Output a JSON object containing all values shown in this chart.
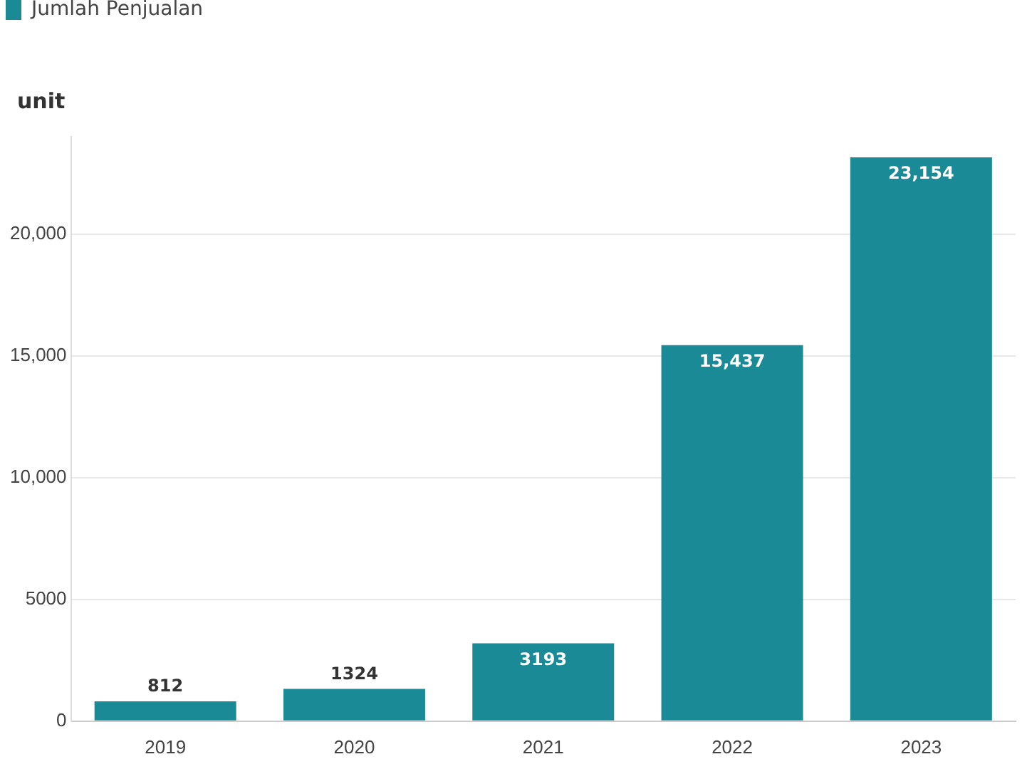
{
  "chart_data": {
    "type": "bar",
    "ylabel": "unit",
    "categories": [
      "2019",
      "2020",
      "2021",
      "2022",
      "2023"
    ],
    "series": [
      {
        "name": "Jumlah Penjualan",
        "color": "#1a8a96",
        "values": [
          812,
          1324,
          3193,
          15437,
          23154
        ],
        "value_labels": [
          "812",
          "1324",
          "3193",
          "15,437",
          "23,154"
        ]
      }
    ],
    "ylim": [
      0,
      24000
    ],
    "yticks": [
      0,
      5000,
      {
        "value": 10000,
        "label": "10,000"
      },
      {
        "value": 15000,
        "label": "15,000"
      },
      {
        "value": 20000,
        "label": "20,000"
      }
    ],
    "grid": "y",
    "legend": "top left"
  }
}
